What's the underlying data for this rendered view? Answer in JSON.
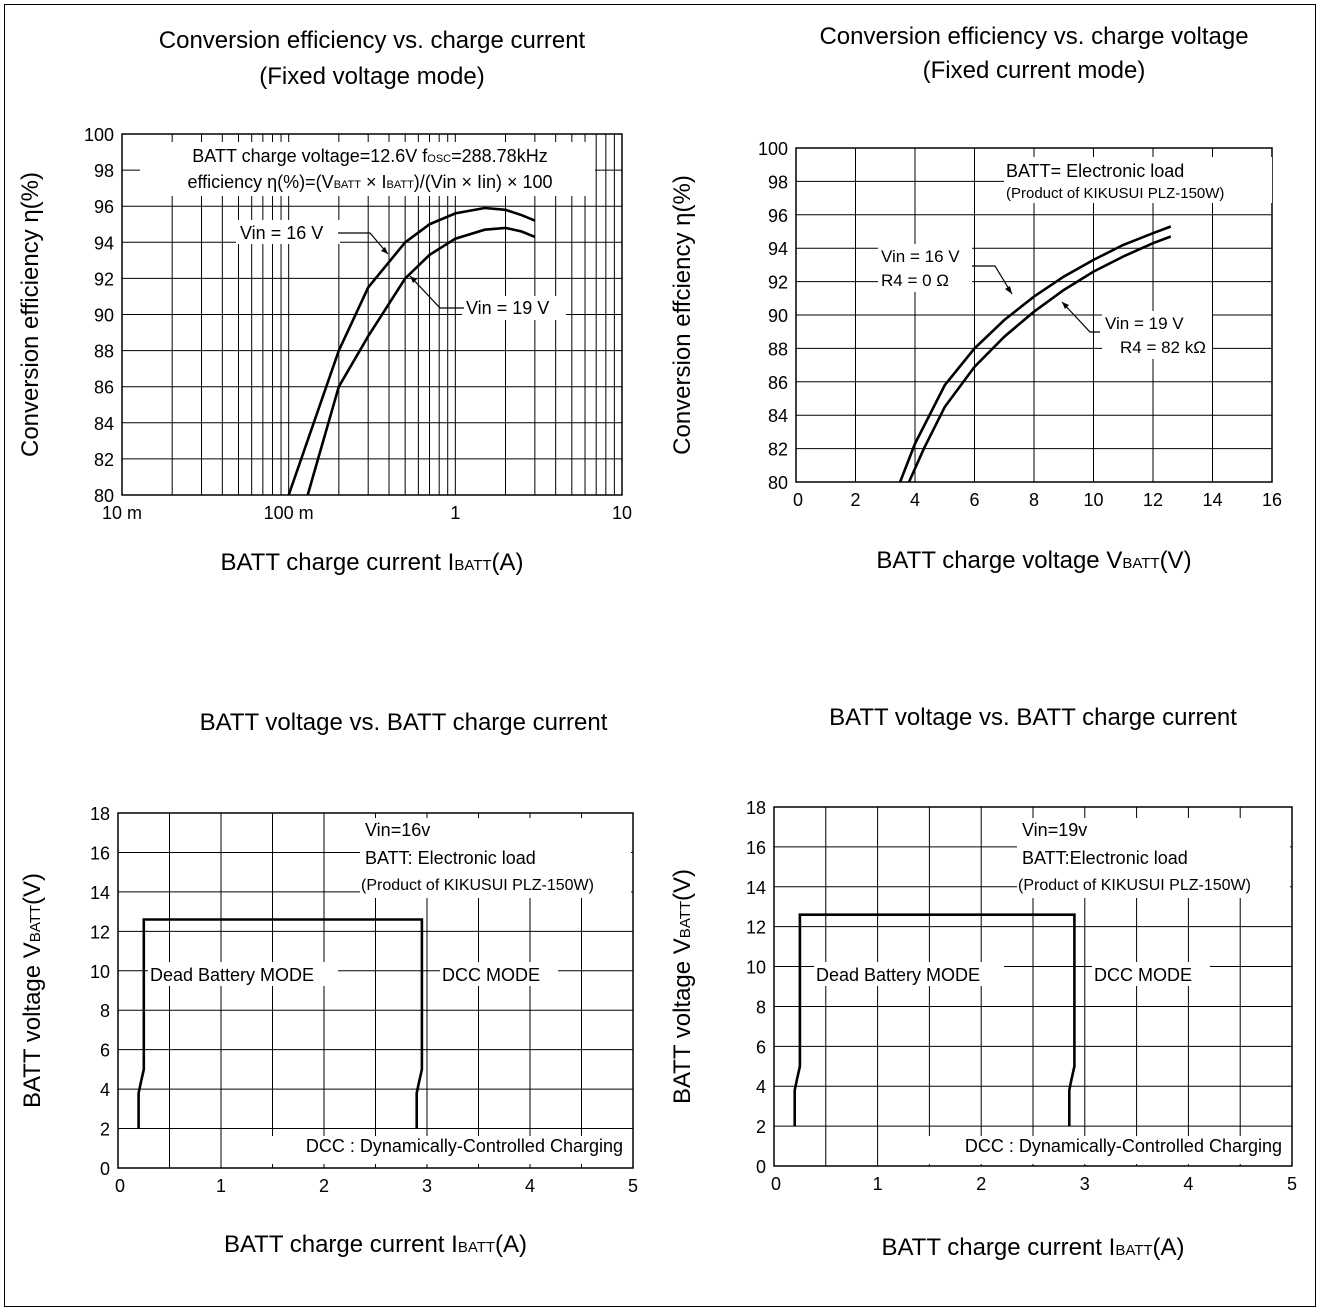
{
  "chart_data": [
    {
      "type": "line",
      "title": "Conversion efficiency vs. charge current",
      "subtitle": "(Fixed voltage mode)",
      "xlabel": "BATT charge current I",
      "xlabel_sub": "BATT",
      "xlabel_tail": "(A)",
      "ylabel": "Conversion efficiency η(%)",
      "x_scale": "log",
      "xlim": [
        0.01,
        10
      ],
      "ylim": [
        80,
        100
      ],
      "x_ticks": [
        {
          "value": 0.01,
          "label": "10 m"
        },
        {
          "value": 0.1,
          "label": "100 m"
        },
        {
          "value": 1,
          "label": "1"
        },
        {
          "value": 10,
          "label": "10"
        }
      ],
      "y_ticks": [
        80,
        82,
        84,
        86,
        88,
        90,
        92,
        94,
        96,
        98,
        100
      ],
      "grid": true,
      "notes": [
        {
          "text": "BATT charge voltage=12.6V f",
          "sub": "OSC",
          "tail": "=288.78kHz"
        },
        {
          "text": "efficiency η(%)=(V",
          "sub": "BATT",
          "tail": " × I",
          "sub2": "BATT",
          "tail2": ")/(Vin × Iin) × 100"
        }
      ],
      "series": [
        {
          "name": "Vin = 16 V",
          "x": [
            0.1,
            0.2,
            0.3,
            0.5,
            0.7,
            1.0,
            1.5,
            2.0,
            2.5,
            3.0
          ],
          "values": [
            80.0,
            88.0,
            91.5,
            94.0,
            95.0,
            95.6,
            95.9,
            95.8,
            95.5,
            95.2
          ]
        },
        {
          "name": "Vin = 19 V",
          "x": [
            0.13,
            0.2,
            0.3,
            0.5,
            0.7,
            1.0,
            1.5,
            2.0,
            2.5,
            3.0
          ],
          "values": [
            80.0,
            86.0,
            88.8,
            92.0,
            93.3,
            94.2,
            94.7,
            94.8,
            94.6,
            94.3
          ]
        }
      ]
    },
    {
      "type": "line",
      "title": "Conversion efficiency vs. charge voltage",
      "subtitle": "(Fixed current mode)",
      "xlabel": "BATT charge voltage V",
      "xlabel_sub": "BATT",
      "xlabel_tail": "(V)",
      "ylabel": "Conversion effciency η(%)",
      "xlim": [
        0,
        16
      ],
      "ylim": [
        80,
        100
      ],
      "x_ticks": [
        0,
        2,
        4,
        6,
        8,
        10,
        12,
        14,
        16
      ],
      "y_ticks": [
        80,
        82,
        84,
        86,
        88,
        90,
        92,
        94,
        96,
        98,
        100
      ],
      "grid": true,
      "notes": [
        {
          "text": "BATT= Electronic load"
        },
        {
          "text": "(Product of KIKUSUI PLZ-150W)"
        }
      ],
      "series": [
        {
          "name": "Vin = 16 V",
          "label2": "R4 = 0 Ω",
          "x": [
            3.5,
            4,
            5,
            6,
            7,
            8,
            9,
            10,
            11,
            12,
            12.6
          ],
          "values": [
            80.0,
            82.3,
            85.8,
            88.0,
            89.7,
            91.1,
            92.3,
            93.3,
            94.2,
            94.9,
            95.3
          ]
        },
        {
          "name": "Vin = 19 V",
          "label2": "R4 = 82 kΩ",
          "x": [
            3.8,
            4.3,
            5,
            6,
            7,
            8,
            9,
            10,
            11,
            12,
            12.6
          ],
          "values": [
            80.0,
            82.0,
            84.5,
            86.9,
            88.7,
            90.2,
            91.5,
            92.6,
            93.5,
            94.3,
            94.7
          ]
        }
      ]
    },
    {
      "type": "line",
      "title": "BATT voltage vs.  BATT charge current",
      "xlabel": "BATT charge current I",
      "xlabel_sub": "BATT",
      "xlabel_tail": "(A)",
      "ylabel": "BATT voltage V",
      "ylabel_sub": "BATT",
      "ylabel_tail": "(V)",
      "xlim": [
        0,
        5
      ],
      "ylim": [
        0,
        18
      ],
      "x_ticks": [
        0,
        1,
        2,
        3,
        4,
        5
      ],
      "y_ticks": [
        0,
        2,
        4,
        6,
        8,
        10,
        12,
        14,
        16,
        18
      ],
      "grid": true,
      "notes": [
        {
          "text": "Vin=16v"
        },
        {
          "text": "BATT: Electronic load"
        },
        {
          "text": "(Product of KIKUSUI PLZ-150W)"
        }
      ],
      "region_labels": [
        "Dead Battery MODE",
        "DCC MODE"
      ],
      "footnote": "DCC : Dynamically-Controlled Charging",
      "series": [
        {
          "x": [
            0.2,
            0.2,
            0.22,
            0.25,
            0.25,
            2.95,
            2.95,
            2.92,
            2.9,
            2.9
          ],
          "values": [
            2,
            3.8,
            4.3,
            5.0,
            12.6,
            12.6,
            5.0,
            4.3,
            3.8,
            2
          ]
        }
      ]
    },
    {
      "type": "line",
      "title": "BATT voltage vs.  BATT charge current",
      "xlabel": "BATT charge current I",
      "xlabel_sub": "BATT",
      "xlabel_tail": "(A)",
      "ylabel": "BATT voltage V",
      "ylabel_sub": "BATT",
      "ylabel_tail": "(V)",
      "xlim": [
        0,
        5
      ],
      "ylim": [
        0,
        18
      ],
      "x_ticks": [
        0,
        1,
        2,
        3,
        4,
        5
      ],
      "y_ticks": [
        0,
        2,
        4,
        6,
        8,
        10,
        12,
        14,
        16,
        18
      ],
      "grid": true,
      "notes": [
        {
          "text": "Vin=19v"
        },
        {
          "text": "BATT:Electronic load"
        },
        {
          "text": "(Product of KIKUSUI PLZ-150W)"
        }
      ],
      "region_labels": [
        "Dead Battery MODE",
        "DCC MODE"
      ],
      "footnote": "DCC : Dynamically-Controlled Charging",
      "series": [
        {
          "x": [
            0.2,
            0.2,
            0.22,
            0.25,
            0.25,
            2.9,
            2.9,
            2.87,
            2.85,
            2.85
          ],
          "values": [
            2,
            3.8,
            4.3,
            5.0,
            12.6,
            12.6,
            5.0,
            4.3,
            3.8,
            2
          ]
        }
      ]
    }
  ]
}
